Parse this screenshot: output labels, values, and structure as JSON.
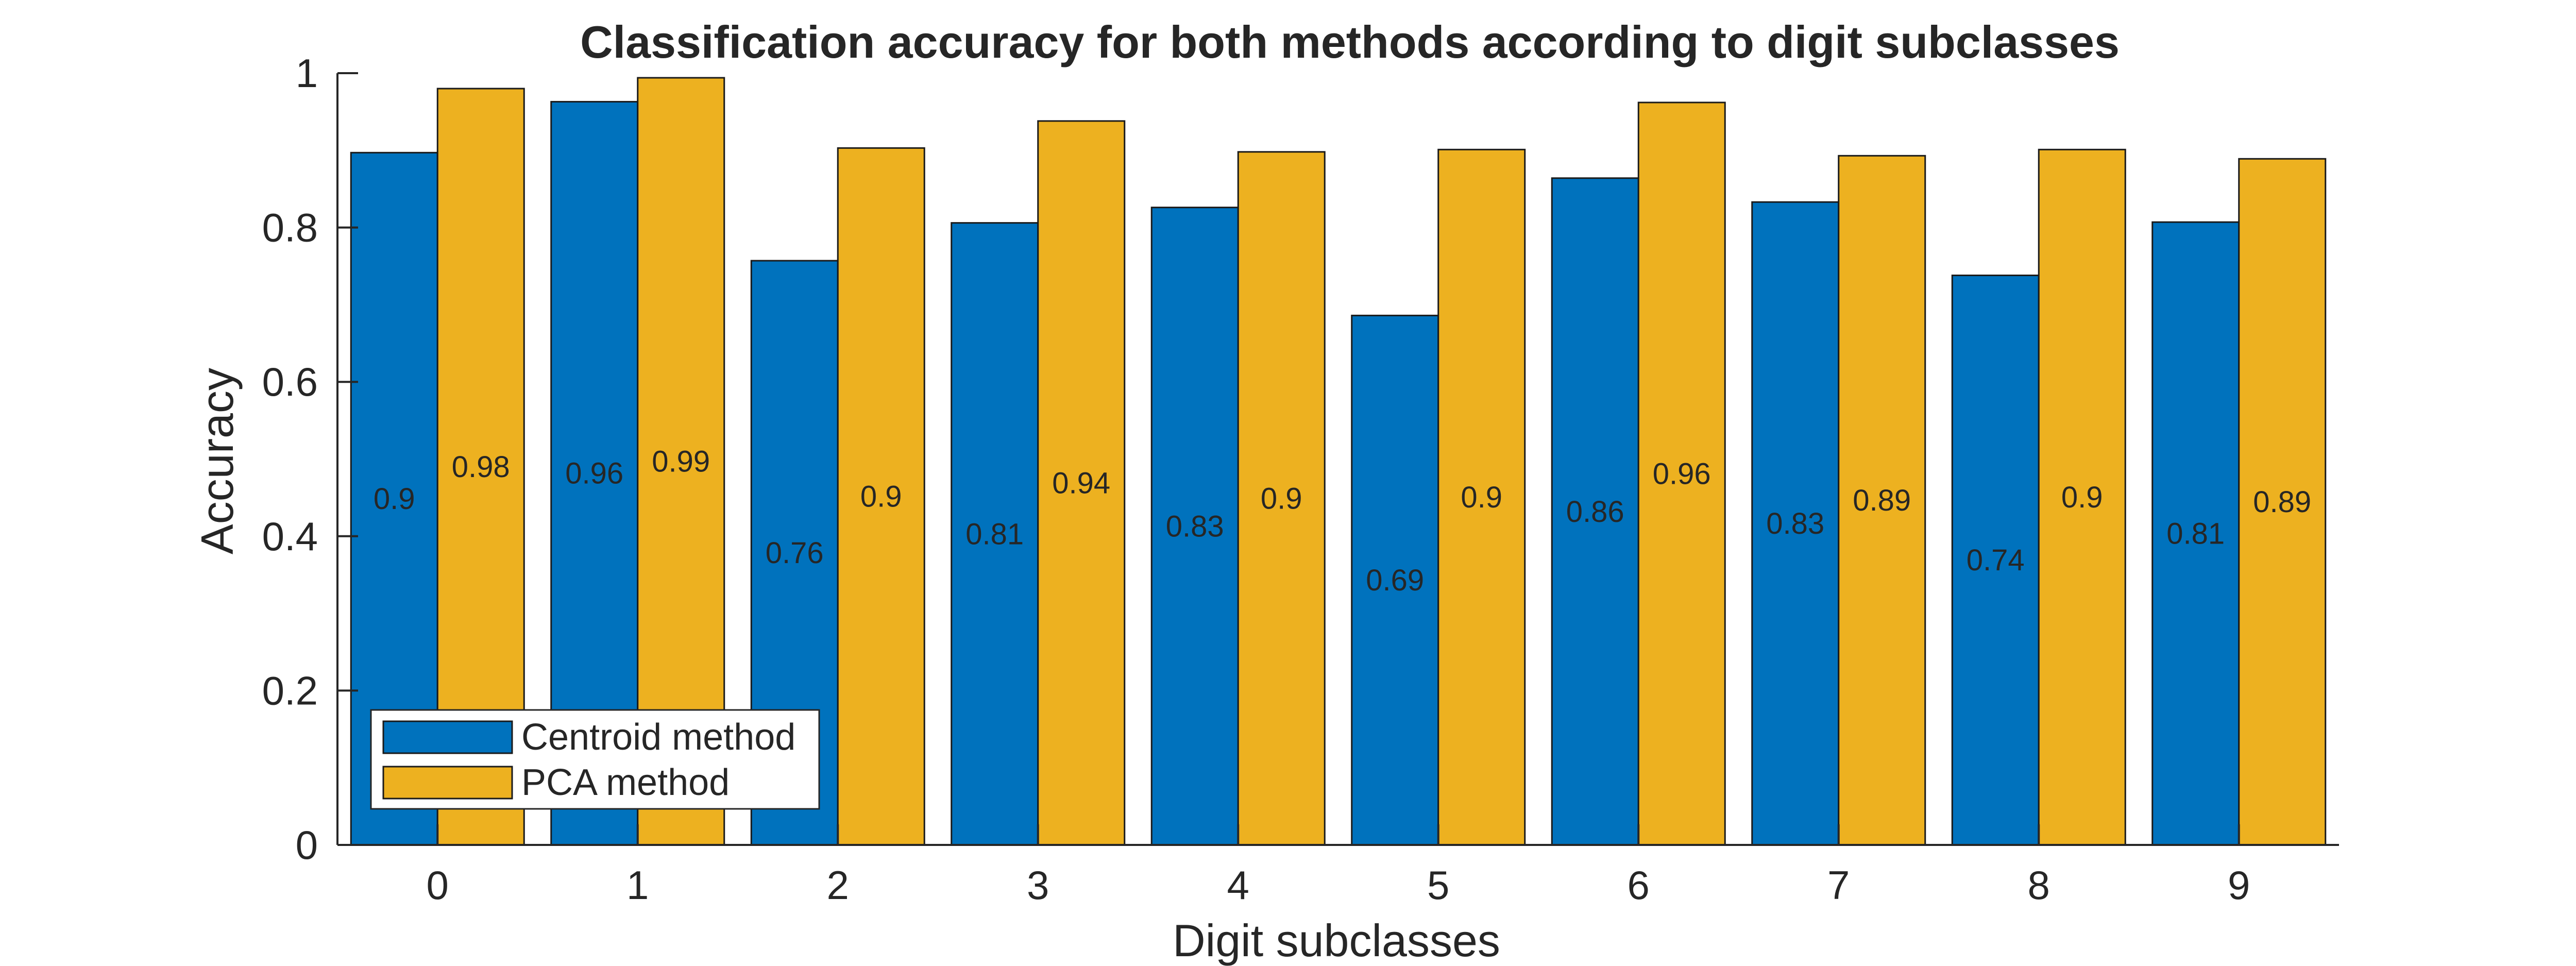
{
  "chart_data": {
    "type": "bar",
    "title": "Classification accuracy for both methods according to digit subclasses",
    "xlabel": "Digit subclasses",
    "ylabel": "Accuracy",
    "categories": [
      "0",
      "1",
      "2",
      "3",
      "4",
      "5",
      "6",
      "7",
      "8",
      "9"
    ],
    "ylim": [
      0,
      1
    ],
    "yticks": [
      0,
      0.2,
      0.4,
      0.6,
      0.8,
      1
    ],
    "ytick_labels": [
      "0",
      "0.2",
      "0.4",
      "0.6",
      "0.8",
      "1"
    ],
    "grid": false,
    "legend_position": "bottom-left",
    "series": [
      {
        "name": "Centroid method",
        "color": "#0072BD",
        "values": [
          0.897,
          0.963,
          0.757,
          0.806,
          0.826,
          0.686,
          0.864,
          0.833,
          0.738,
          0.807
        ],
        "labels": [
          "0.9",
          "0.96",
          "0.76",
          "0.81",
          "0.83",
          "0.69",
          "0.86",
          "0.83",
          "0.74",
          "0.81"
        ]
      },
      {
        "name": "PCA method",
        "color": "#EDB120",
        "values": [
          0.98,
          0.994,
          0.903,
          0.938,
          0.898,
          0.901,
          0.962,
          0.893,
          0.901,
          0.889
        ],
        "labels": [
          "0.98",
          "0.99",
          "0.9",
          "0.94",
          "0.9",
          "0.9",
          "0.96",
          "0.89",
          "0.9",
          "0.89"
        ]
      }
    ]
  }
}
